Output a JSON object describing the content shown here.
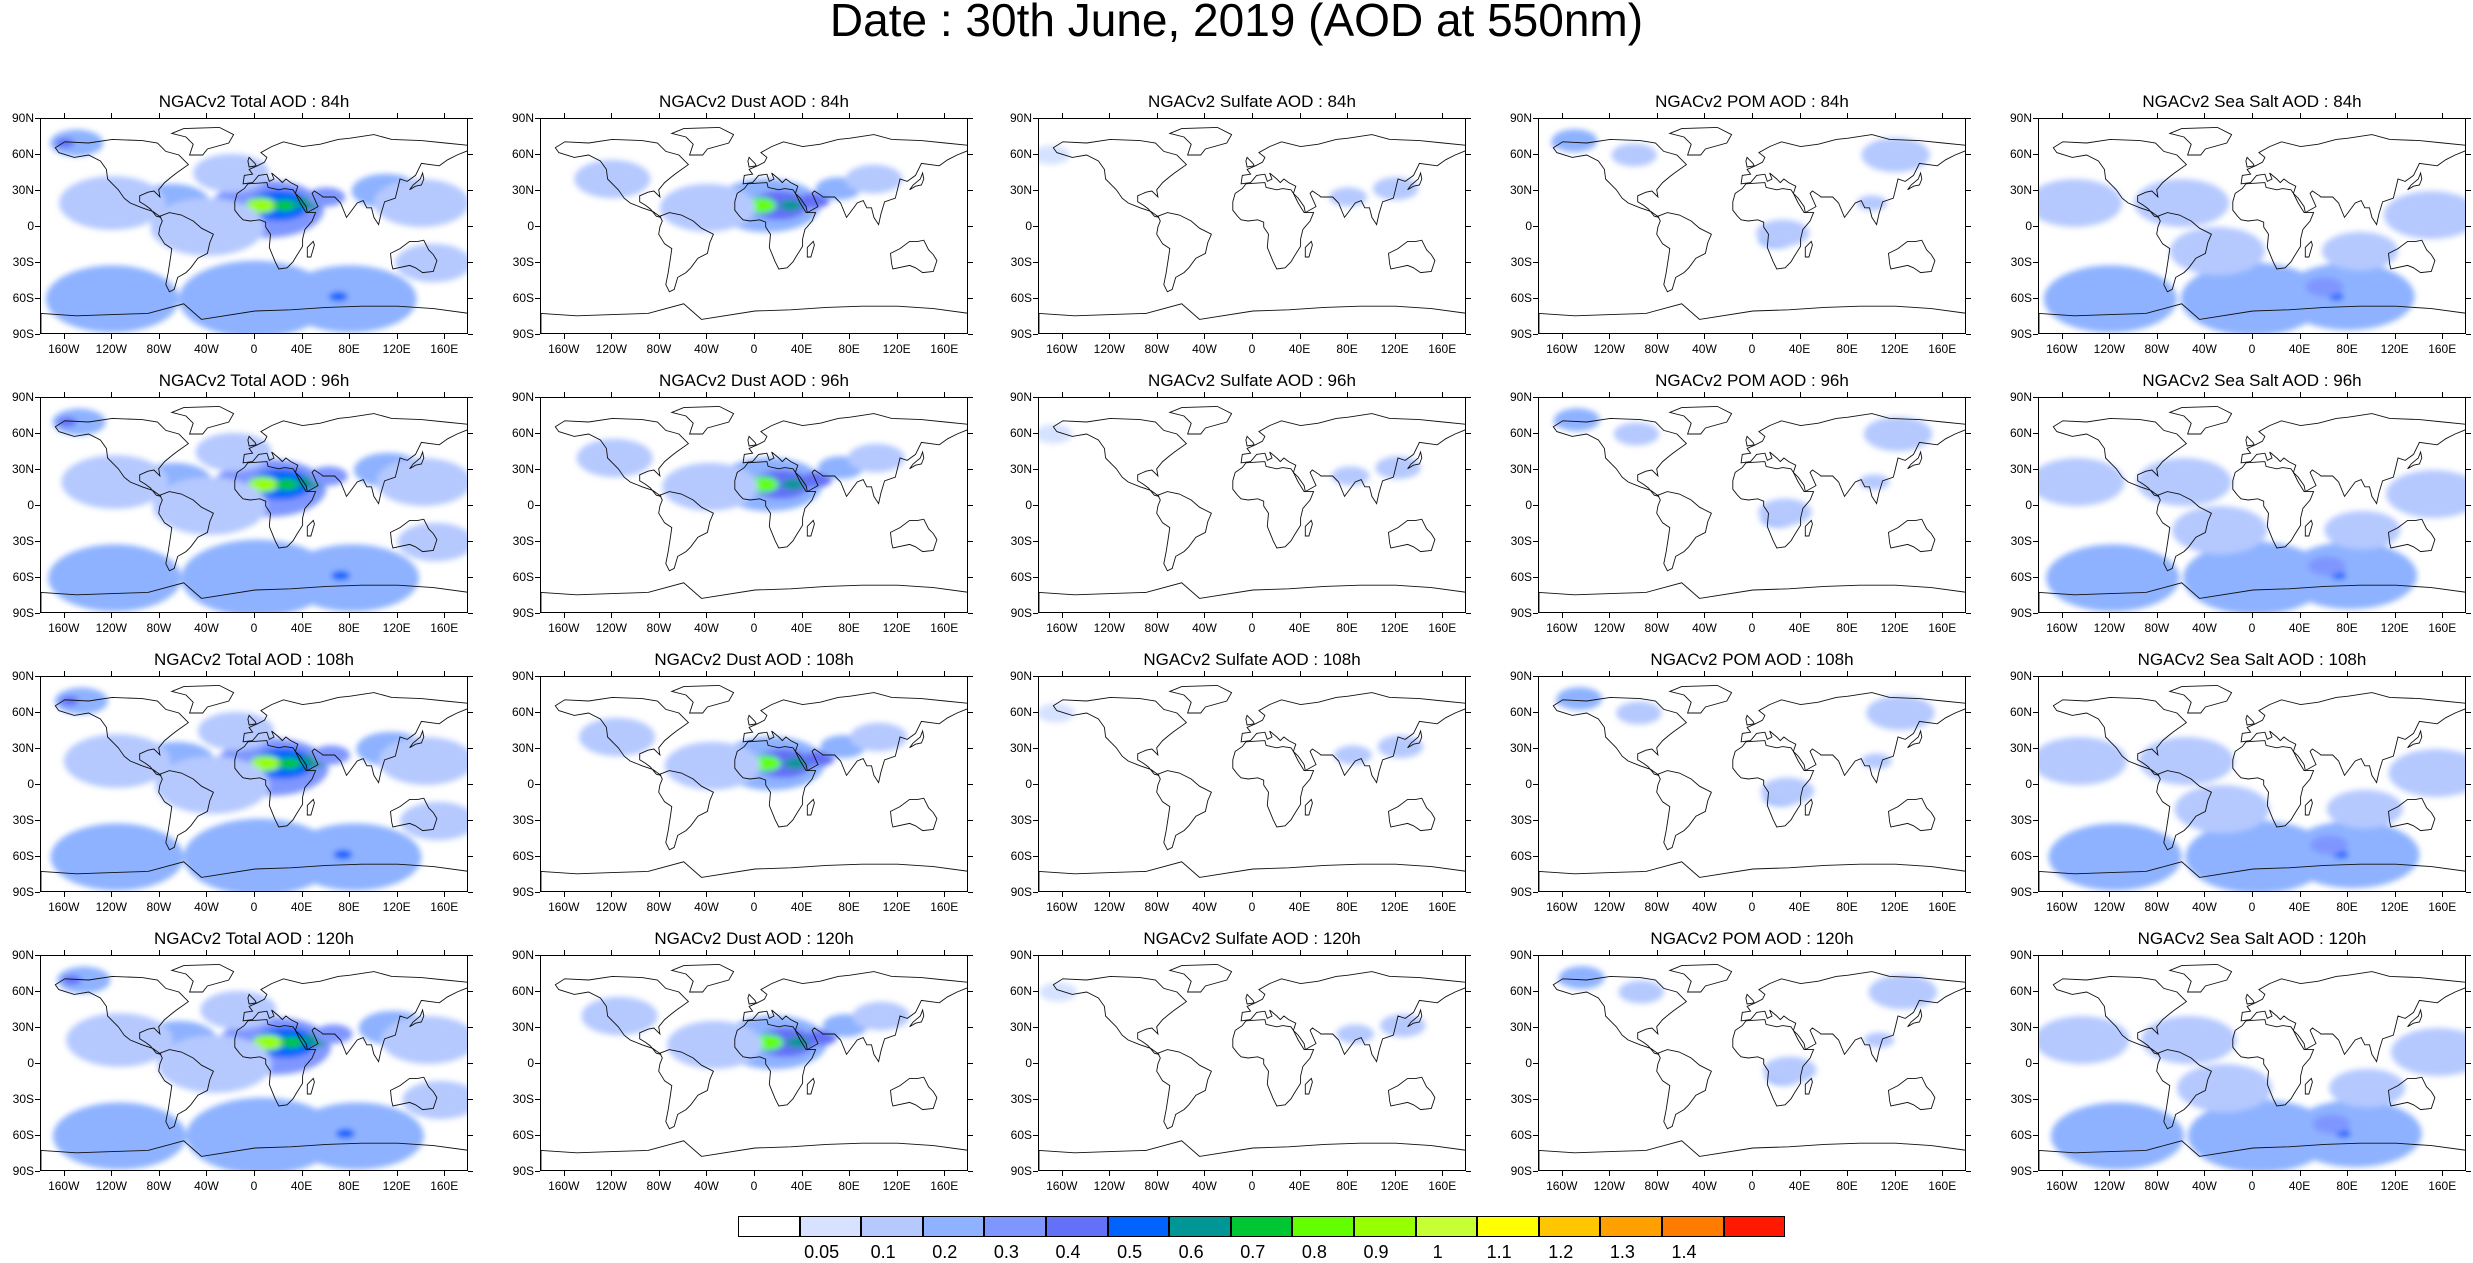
{
  "title": "Date : 30th June, 2019 (AOD at 550nm)",
  "lat_labels": [
    "90N",
    "60N",
    "30N",
    "0",
    "30S",
    "60S",
    "90S"
  ],
  "lon_labels": [
    "160W",
    "120W",
    "80W",
    "40W",
    "0",
    "40E",
    "80E",
    "120E",
    "160E"
  ],
  "panels": [
    {
      "title": "NGACv2 Total AOD : 84h",
      "species": "total",
      "forecast_hour": 84
    },
    {
      "title": "NGACv2 Dust AOD : 84h",
      "species": "dust",
      "forecast_hour": 84
    },
    {
      "title": "NGACv2 Sulfate AOD : 84h",
      "species": "sulfate",
      "forecast_hour": 84
    },
    {
      "title": "NGACv2 POM AOD : 84h",
      "species": "pom",
      "forecast_hour": 84
    },
    {
      "title": "NGACv2 Sea Salt AOD : 84h",
      "species": "seasalt",
      "forecast_hour": 84
    },
    {
      "title": "NGACv2 Total AOD : 96h",
      "species": "total",
      "forecast_hour": 96
    },
    {
      "title": "NGACv2 Dust AOD : 96h",
      "species": "dust",
      "forecast_hour": 96
    },
    {
      "title": "NGACv2 Sulfate AOD : 96h",
      "species": "sulfate",
      "forecast_hour": 96
    },
    {
      "title": "NGACv2 POM AOD : 96h",
      "species": "pom",
      "forecast_hour": 96
    },
    {
      "title": "NGACv2 Sea Salt AOD : 96h",
      "species": "seasalt",
      "forecast_hour": 96
    },
    {
      "title": "NGACv2 Total AOD : 108h",
      "species": "total",
      "forecast_hour": 108
    },
    {
      "title": "NGACv2 Dust AOD : 108h",
      "species": "dust",
      "forecast_hour": 108
    },
    {
      "title": "NGACv2 Sulfate AOD : 108h",
      "species": "sulfate",
      "forecast_hour": 108
    },
    {
      "title": "NGACv2 POM AOD : 108h",
      "species": "pom",
      "forecast_hour": 108
    },
    {
      "title": "NGACv2 Sea Salt AOD : 108h",
      "species": "seasalt",
      "forecast_hour": 108
    },
    {
      "title": "NGACv2 Total AOD : 120h",
      "species": "total",
      "forecast_hour": 120
    },
    {
      "title": "NGACv2 Dust AOD : 120h",
      "species": "dust",
      "forecast_hour": 120
    },
    {
      "title": "NGACv2 Sulfate AOD : 120h",
      "species": "sulfate",
      "forecast_hour": 120
    },
    {
      "title": "NGACv2 POM AOD : 120h",
      "species": "pom",
      "forecast_hour": 120
    },
    {
      "title": "NGACv2 Sea Salt  AOD : 120h",
      "species": "seasalt",
      "forecast_hour": 120
    }
  ],
  "colorbar": {
    "colors": [
      "#ffffff",
      "#d6e2ff",
      "#b5c9ff",
      "#8eb2ff",
      "#7f96ff",
      "#6370f8",
      "#0063ff",
      "#009696",
      "#00c633",
      "#63ff00",
      "#96ff00",
      "#c6ff33",
      "#ffff00",
      "#ffc600",
      "#ffa000",
      "#ff7c00",
      "#ff1900"
    ],
    "labels": [
      "0.05",
      "0.1",
      "0.2",
      "0.3",
      "0.4",
      "0.5",
      "0.6",
      "0.7",
      "0.8",
      "0.9",
      "1",
      "1.1",
      "1.2",
      "1.3",
      "1.4"
    ]
  }
}
